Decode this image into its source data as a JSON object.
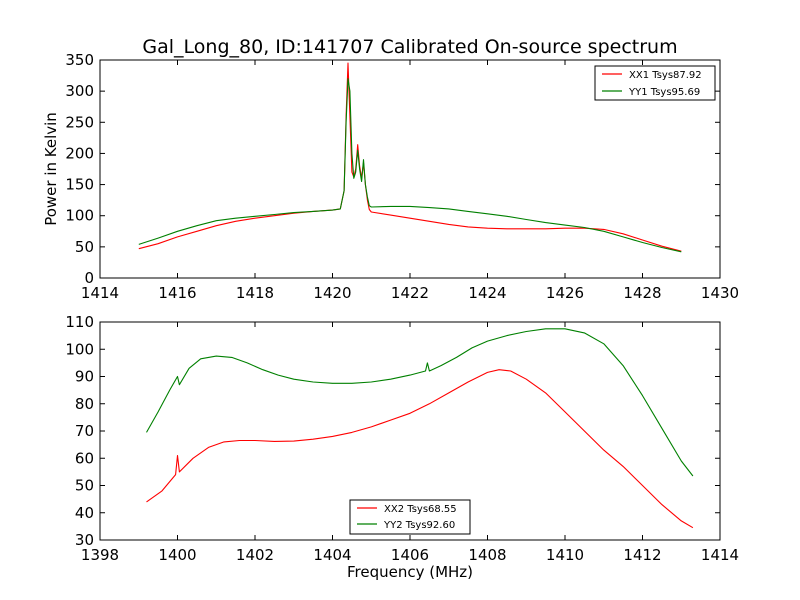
{
  "figure_title": "Gal_Long_80, ID:141707 Calibrated On-source spectrum",
  "colors": {
    "xx": "#ff0000",
    "yy": "#008000"
  },
  "chart_data": [
    {
      "type": "line",
      "title": "Gal_Long_80, ID:141707 Calibrated On-source spectrum",
      "xlabel": "",
      "ylabel": "Power in Kelvin",
      "xlim": [
        1414,
        1430
      ],
      "ylim": [
        0,
        350
      ],
      "xticks": [
        1414,
        1416,
        1418,
        1420,
        1422,
        1424,
        1426,
        1428,
        1430
      ],
      "yticks": [
        0,
        50,
        100,
        150,
        200,
        250,
        300,
        350
      ],
      "legend_position": "top-right",
      "series": [
        {
          "name": "XX1 Tsys87.92",
          "color": "#ff0000",
          "points": [
            [
              1415,
              47
            ],
            [
              1415.5,
              55
            ],
            [
              1416,
              66
            ],
            [
              1416.5,
              75
            ],
            [
              1417,
              84
            ],
            [
              1417.5,
              91
            ],
            [
              1418,
              96
            ],
            [
              1418.5,
              100
            ],
            [
              1419,
              104
            ],
            [
              1419.5,
              107
            ],
            [
              1420,
              109
            ],
            [
              1420.2,
              111
            ],
            [
              1420.3,
              140
            ],
            [
              1420.35,
              260
            ],
            [
              1420.4,
              345
            ],
            [
              1420.45,
              260
            ],
            [
              1420.5,
              170
            ],
            [
              1420.55,
              162
            ],
            [
              1420.6,
              175
            ],
            [
              1420.65,
              214
            ],
            [
              1420.7,
              180
            ],
            [
              1420.75,
              160
            ],
            [
              1420.8,
              185
            ],
            [
              1420.85,
              150
            ],
            [
              1420.9,
              125
            ],
            [
              1420.95,
              110
            ],
            [
              1421,
              106
            ],
            [
              1421.5,
              101
            ],
            [
              1422,
              96
            ],
            [
              1422.5,
              91
            ],
            [
              1423,
              86
            ],
            [
              1423.5,
              82
            ],
            [
              1424,
              80
            ],
            [
              1424.5,
              79
            ],
            [
              1425,
              79
            ],
            [
              1425.5,
              79
            ],
            [
              1426,
              80
            ],
            [
              1426.5,
              80
            ],
            [
              1427,
              78
            ],
            [
              1427.5,
              71
            ],
            [
              1428,
              61
            ],
            [
              1428.5,
              51
            ],
            [
              1429,
              43
            ]
          ]
        },
        {
          "name": "YY1 Tsys95.69",
          "color": "#008000",
          "points": [
            [
              1415,
              54
            ],
            [
              1415.5,
              64
            ],
            [
              1416,
              75
            ],
            [
              1416.5,
              84
            ],
            [
              1417,
              92
            ],
            [
              1417.5,
              96
            ],
            [
              1418,
              99
            ],
            [
              1418.5,
              102
            ],
            [
              1419,
              105
            ],
            [
              1419.5,
              107
            ],
            [
              1420,
              109
            ],
            [
              1420.2,
              111
            ],
            [
              1420.3,
              140
            ],
            [
              1420.35,
              250
            ],
            [
              1420.4,
              320
            ],
            [
              1420.45,
              300
            ],
            [
              1420.5,
              200
            ],
            [
              1420.55,
              160
            ],
            [
              1420.6,
              170
            ],
            [
              1420.65,
              205
            ],
            [
              1420.7,
              175
            ],
            [
              1420.75,
              155
            ],
            [
              1420.8,
              190
            ],
            [
              1420.85,
              150
            ],
            [
              1420.9,
              130
            ],
            [
              1420.95,
              116
            ],
            [
              1421,
              114
            ],
            [
              1421.5,
              115
            ],
            [
              1422,
              115
            ],
            [
              1422.5,
              113
            ],
            [
              1423,
              111
            ],
            [
              1423.5,
              107
            ],
            [
              1424,
              103
            ],
            [
              1424.5,
              99
            ],
            [
              1425,
              94
            ],
            [
              1425.5,
              89
            ],
            [
              1426,
              85
            ],
            [
              1426.5,
              81
            ],
            [
              1427,
              75
            ],
            [
              1427.5,
              66
            ],
            [
              1428,
              57
            ],
            [
              1428.5,
              49
            ],
            [
              1429,
              42
            ]
          ]
        }
      ]
    },
    {
      "type": "line",
      "title": "",
      "xlabel": "Frequency (MHz)",
      "ylabel": "",
      "xlim": [
        1398,
        1414
      ],
      "ylim": [
        30,
        110
      ],
      "xticks": [
        1398,
        1400,
        1402,
        1404,
        1406,
        1408,
        1410,
        1412,
        1414
      ],
      "yticks": [
        30,
        40,
        50,
        60,
        70,
        80,
        90,
        100,
        110
      ],
      "legend_position": "bottom-center",
      "series": [
        {
          "name": "XX2 Tsys68.55",
          "color": "#ff0000",
          "points": [
            [
              1399.2,
              44
            ],
            [
              1399.6,
              48
            ],
            [
              1399.95,
              54
            ],
            [
              1400,
              61
            ],
            [
              1400.05,
              55
            ],
            [
              1400.4,
              60
            ],
            [
              1400.8,
              64
            ],
            [
              1401.2,
              66
            ],
            [
              1401.6,
              66.5
            ],
            [
              1402,
              66.5
            ],
            [
              1402.5,
              66.2
            ],
            [
              1403,
              66.3
            ],
            [
              1403.5,
              67
            ],
            [
              1404,
              68
            ],
            [
              1404.5,
              69.5
            ],
            [
              1405,
              71.5
            ],
            [
              1405.5,
              74
            ],
            [
              1406,
              76.5
            ],
            [
              1406.5,
              80
            ],
            [
              1407,
              84
            ],
            [
              1407.5,
              88
            ],
            [
              1408,
              91.5
            ],
            [
              1408.3,
              92.5
            ],
            [
              1408.6,
              92
            ],
            [
              1409,
              89
            ],
            [
              1409.5,
              84
            ],
            [
              1410,
              77
            ],
            [
              1410.5,
              70
            ],
            [
              1411,
              63
            ],
            [
              1411.5,
              57
            ],
            [
              1412,
              50
            ],
            [
              1412.5,
              43
            ],
            [
              1413,
              37
            ],
            [
              1413.3,
              34.5
            ]
          ]
        },
        {
          "name": "YY2 Tsys92.60",
          "color": "#008000",
          "points": [
            [
              1399.2,
              69.5
            ],
            [
              1399.5,
              77
            ],
            [
              1399.8,
              85
            ],
            [
              1400,
              90
            ],
            [
              1400.05,
              87
            ],
            [
              1400.3,
              93
            ],
            [
              1400.6,
              96.5
            ],
            [
              1401,
              97.5
            ],
            [
              1401.4,
              97
            ],
            [
              1401.8,
              95
            ],
            [
              1402.2,
              92.5
            ],
            [
              1402.6,
              90.5
            ],
            [
              1403,
              89
            ],
            [
              1403.5,
              88
            ],
            [
              1404,
              87.5
            ],
            [
              1404.5,
              87.5
            ],
            [
              1405,
              88
            ],
            [
              1405.5,
              89
            ],
            [
              1406,
              90.5
            ],
            [
              1406.4,
              92
            ],
            [
              1406.45,
              95
            ],
            [
              1406.5,
              92
            ],
            [
              1406.8,
              94
            ],
            [
              1407.2,
              97
            ],
            [
              1407.6,
              100.5
            ],
            [
              1408,
              103
            ],
            [
              1408.5,
              105
            ],
            [
              1409,
              106.5
            ],
            [
              1409.5,
              107.5
            ],
            [
              1410,
              107.5
            ],
            [
              1410.5,
              106
            ],
            [
              1411,
              102
            ],
            [
              1411.5,
              94
            ],
            [
              1412,
              83
            ],
            [
              1412.5,
              71
            ],
            [
              1413,
              59
            ],
            [
              1413.3,
              53.5
            ]
          ]
        }
      ]
    }
  ]
}
